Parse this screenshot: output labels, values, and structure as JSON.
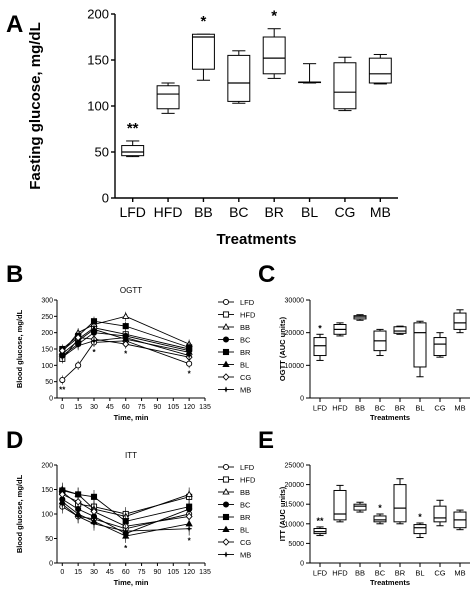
{
  "panels": {
    "A": {
      "label": "A"
    },
    "B": {
      "label": "B"
    },
    "C": {
      "label": "C"
    },
    "D": {
      "label": "D"
    },
    "E": {
      "label": "E"
    }
  },
  "chart_data": [
    {
      "id": "A",
      "type": "box",
      "title": "",
      "xlabel": "Treatments",
      "ylabel": "Fasting glucose, mg/dL",
      "categories": [
        "LFD",
        "HFD",
        "BB",
        "BC",
        "BR",
        "BL",
        "CG",
        "MB"
      ],
      "ylim": [
        0,
        200
      ],
      "yticks": [
        0,
        50,
        100,
        150,
        200
      ],
      "boxes": [
        {
          "min": 45,
          "q1": 46,
          "median": 50,
          "q3": 57,
          "max": 62
        },
        {
          "min": 92,
          "q1": 97,
          "median": 113,
          "q3": 122,
          "max": 125
        },
        {
          "min": 128,
          "q1": 140,
          "median": 175,
          "q3": 178,
          "max": 178
        },
        {
          "min": 103,
          "q1": 105,
          "median": 125,
          "q3": 155,
          "max": 160
        },
        {
          "min": 130,
          "q1": 135,
          "median": 152,
          "q3": 175,
          "max": 184
        },
        {
          "min": 125,
          "q1": 126,
          "median": 126,
          "q3": 126,
          "max": 146
        },
        {
          "min": 95,
          "q1": 97,
          "median": 115,
          "q3": 147,
          "max": 153
        },
        {
          "min": 124,
          "q1": 125,
          "median": 135,
          "q3": 152,
          "max": 156
        }
      ],
      "annotations": [
        {
          "category": "LFD",
          "text": "**"
        },
        {
          "category": "BB",
          "text": "*"
        },
        {
          "category": "BR",
          "text": "*"
        }
      ]
    },
    {
      "id": "B",
      "type": "line",
      "title": "OGTT",
      "xlabel": "Time, min",
      "ylabel": "Blood glucose, mg/dL",
      "x": [
        0,
        15,
        30,
        60,
        120
      ],
      "xticks": [
        0,
        15,
        30,
        45,
        60,
        75,
        90,
        105,
        120,
        135
      ],
      "xlim": [
        -5,
        135
      ],
      "ylim": [
        0,
        300
      ],
      "yticks": [
        0,
        50,
        100,
        150,
        200,
        250,
        300
      ],
      "legend_position": "right",
      "series": [
        {
          "name": "LFD",
          "marker": "open-circle",
          "values": [
            55,
            100,
            170,
            175,
            105
          ]
        },
        {
          "name": "HFD",
          "marker": "open-square",
          "values": [
            120,
            180,
            215,
            195,
            150
          ]
        },
        {
          "name": "BB",
          "marker": "open-triangle",
          "values": [
            140,
            200,
            225,
            250,
            165
          ]
        },
        {
          "name": "BC",
          "marker": "filled-circle",
          "values": [
            130,
            165,
            200,
            190,
            145
          ]
        },
        {
          "name": "BR",
          "marker": "filled-square",
          "values": [
            150,
            190,
            235,
            220,
            155
          ]
        },
        {
          "name": "BL",
          "marker": "filled-triangle",
          "values": [
            135,
            175,
            210,
            180,
            140
          ]
        },
        {
          "name": "CG",
          "marker": "open-diamond",
          "values": [
            145,
            185,
            180,
            165,
            125
          ]
        },
        {
          "name": "MB",
          "marker": "star",
          "values": [
            125,
            160,
            175,
            185,
            130
          ]
        }
      ],
      "annotations": [
        {
          "x": 0,
          "text": "**"
        },
        {
          "x": 30,
          "text": "*"
        },
        {
          "x": 60,
          "text": "*"
        },
        {
          "x": 120,
          "text": "*"
        }
      ]
    },
    {
      "id": "C",
      "type": "box",
      "title": "",
      "xlabel": "Treatments",
      "ylabel": "OGTT (AUC units)",
      "categories": [
        "LFD",
        "HFD",
        "BB",
        "BC",
        "BR",
        "BL",
        "CG",
        "MB"
      ],
      "ylim": [
        0,
        30000
      ],
      "yticks": [
        0,
        10000,
        20000,
        30000
      ],
      "boxes": [
        {
          "min": 11500,
          "q1": 13000,
          "median": 16000,
          "q3": 18500,
          "max": 19500
        },
        {
          "min": 19000,
          "q1": 19500,
          "median": 21000,
          "q3": 22500,
          "max": 23000
        },
        {
          "min": 23800,
          "q1": 24200,
          "median": 24800,
          "q3": 25200,
          "max": 25500
        },
        {
          "min": 13000,
          "q1": 14500,
          "median": 17500,
          "q3": 20500,
          "max": 21000
        },
        {
          "min": 19500,
          "q1": 19800,
          "median": 20500,
          "q3": 21800,
          "max": 22000
        },
        {
          "min": 6500,
          "q1": 9500,
          "median": 20000,
          "q3": 23000,
          "max": 23500
        },
        {
          "min": 12500,
          "q1": 13000,
          "median": 16500,
          "q3": 18500,
          "max": 20000
        },
        {
          "min": 20000,
          "q1": 21000,
          "median": 23000,
          "q3": 26000,
          "max": 27000
        }
      ],
      "annotations": [
        {
          "category": "LFD",
          "text": "*"
        }
      ]
    },
    {
      "id": "D",
      "type": "line",
      "title": "ITT",
      "xlabel": "Time, min",
      "ylabel": "Blood glucose, mg/dL",
      "x": [
        0,
        15,
        30,
        60,
        120
      ],
      "xticks": [
        0,
        15,
        30,
        45,
        60,
        75,
        90,
        105,
        120,
        135
      ],
      "xlim": [
        -5,
        135
      ],
      "ylim": [
        0,
        200
      ],
      "yticks": [
        0,
        50,
        100,
        150,
        200
      ],
      "legend_position": "right",
      "series": [
        {
          "name": "LFD",
          "marker": "open-circle",
          "values": [
            115,
            95,
            90,
            70,
            100
          ]
        },
        {
          "name": "HFD",
          "marker": "open-square",
          "values": [
            145,
            120,
            115,
            100,
            135
          ]
        },
        {
          "name": "BB",
          "marker": "open-triangle",
          "values": [
            150,
            140,
            110,
            95,
            140
          ]
        },
        {
          "name": "BC",
          "marker": "filled-circle",
          "values": [
            130,
            110,
            95,
            60,
            110
          ]
        },
        {
          "name": "BR",
          "marker": "filled-square",
          "values": [
            148,
            140,
            135,
            85,
            115
          ]
        },
        {
          "name": "BL",
          "marker": "filled-triangle",
          "values": [
            125,
            100,
            85,
            55,
            80
          ]
        },
        {
          "name": "CG",
          "marker": "open-diamond",
          "values": [
            140,
            125,
            105,
            75,
            95
          ]
        },
        {
          "name": "MB",
          "marker": "star",
          "values": [
            120,
            95,
            80,
            65,
            70
          ]
        }
      ],
      "annotations": [
        {
          "x": 60,
          "text": "*"
        },
        {
          "x": 120,
          "text": "*"
        }
      ]
    },
    {
      "id": "E",
      "type": "box",
      "title": "",
      "xlabel": "Treatments",
      "ylabel": "ITT (AUC units)",
      "categories": [
        "LFD",
        "HFD",
        "BB",
        "BC",
        "BR",
        "BL",
        "CG",
        "MB"
      ],
      "ylim": [
        0,
        25000
      ],
      "yticks": [
        0,
        5000,
        10000,
        15000,
        20000,
        25000
      ],
      "boxes": [
        {
          "min": 7000,
          "q1": 7500,
          "median": 8000,
          "q3": 8800,
          "max": 9200
        },
        {
          "min": 10500,
          "q1": 11000,
          "median": 12500,
          "q3": 18500,
          "max": 19800
        },
        {
          "min": 13000,
          "q1": 13500,
          "median": 14500,
          "q3": 15000,
          "max": 15500
        },
        {
          "min": 10000,
          "q1": 10500,
          "median": 11000,
          "q3": 12000,
          "max": 12500
        },
        {
          "min": 10000,
          "q1": 10500,
          "median": 14000,
          "q3": 20000,
          "max": 21500
        },
        {
          "min": 6500,
          "q1": 7500,
          "median": 9000,
          "q3": 9800,
          "max": 10200
        },
        {
          "min": 9500,
          "q1": 10500,
          "median": 11500,
          "q3": 14500,
          "max": 16000
        },
        {
          "min": 8500,
          "q1": 9000,
          "median": 11000,
          "q3": 13000,
          "max": 13500
        }
      ],
      "annotations": [
        {
          "category": "LFD",
          "text": "**"
        },
        {
          "category": "BC",
          "text": "*"
        },
        {
          "category": "BL",
          "text": "*"
        }
      ]
    }
  ]
}
